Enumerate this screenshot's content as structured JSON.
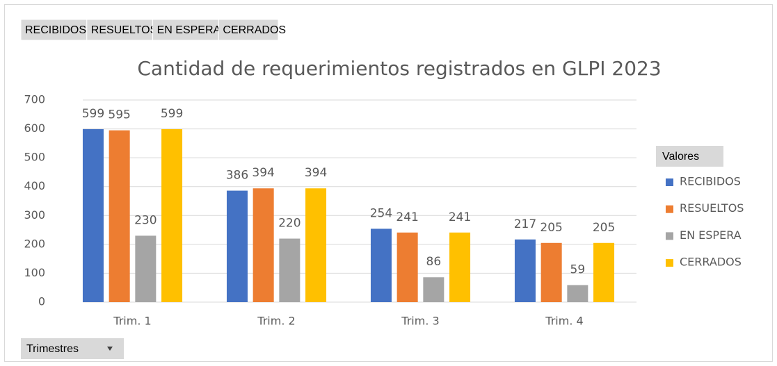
{
  "chart_data": {
    "type": "bar",
    "title": "Cantidad de requerimientos registrados en GLPI 2023",
    "categories": [
      "Trim. 1",
      "Trim. 2",
      "Trim. 3",
      "Trim. 4"
    ],
    "series": [
      {
        "name": "RECIBIDOS",
        "color": "#4472c4",
        "values": [
          599,
          386,
          254,
          217
        ]
      },
      {
        "name": "RESUELTOS",
        "color": "#ed7d31",
        "values": [
          595,
          394,
          241,
          205
        ]
      },
      {
        "name": "EN ESPERA",
        "color": "#a5a5a5",
        "values": [
          230,
          220,
          86,
          59
        ]
      },
      {
        "name": "CERRADOS",
        "color": "#ffc000",
        "values": [
          599,
          394,
          241,
          205
        ]
      }
    ],
    "ylim": [
      0,
      700
    ],
    "yticks": [
      0,
      100,
      200,
      300,
      400,
      500,
      600,
      700
    ],
    "grid": true,
    "legend_title": "Valores",
    "legend_position": "right",
    "axis_field": "Trimestres"
  }
}
